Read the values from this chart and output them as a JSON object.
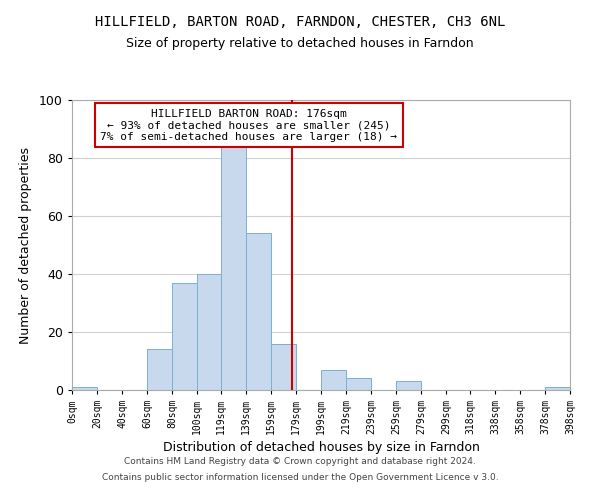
{
  "title": "HILLFIELD, BARTON ROAD, FARNDON, CHESTER, CH3 6NL",
  "subtitle": "Size of property relative to detached houses in Farndon",
  "xlabel": "Distribution of detached houses by size in Farndon",
  "ylabel": "Number of detached properties",
  "footer_lines": [
    "Contains HM Land Registry data © Crown copyright and database right 2024.",
    "Contains public sector information licensed under the Open Government Licence v 3.0."
  ],
  "bin_edges": [
    0,
    20,
    40,
    60,
    80,
    100,
    119,
    139,
    159,
    179,
    199,
    219,
    239,
    259,
    279,
    299,
    318,
    338,
    358,
    378,
    398
  ],
  "bin_labels": [
    "0sqm",
    "20sqm",
    "40sqm",
    "60sqm",
    "80sqm",
    "100sqm",
    "119sqm",
    "139sqm",
    "159sqm",
    "179sqm",
    "199sqm",
    "219sqm",
    "239sqm",
    "259sqm",
    "279sqm",
    "299sqm",
    "318sqm",
    "338sqm",
    "358sqm",
    "378sqm",
    "398sqm"
  ],
  "bar_heights": [
    1,
    0,
    0,
    14,
    37,
    40,
    84,
    54,
    16,
    0,
    7,
    4,
    0,
    3,
    0,
    0,
    0,
    0,
    0,
    1
  ],
  "bar_color": "#c8d9ed",
  "bar_edge_color": "#7bafd4",
  "vline_x": 176,
  "vline_color": "#cc0000",
  "annotation_text_line1": "HILLFIELD BARTON ROAD: 176sqm",
  "annotation_text_line2": "← 93% of detached houses are smaller (245)",
  "annotation_text_line3": "7% of semi-detached houses are larger (18) →",
  "annotation_box_color": "#ffffff",
  "annotation_box_edge_color": "#cc0000",
  "ylim": [
    0,
    100
  ],
  "yticks": [
    0,
    20,
    40,
    60,
    80,
    100
  ],
  "background_color": "#ffffff",
  "grid_color": "#d0d0d0"
}
